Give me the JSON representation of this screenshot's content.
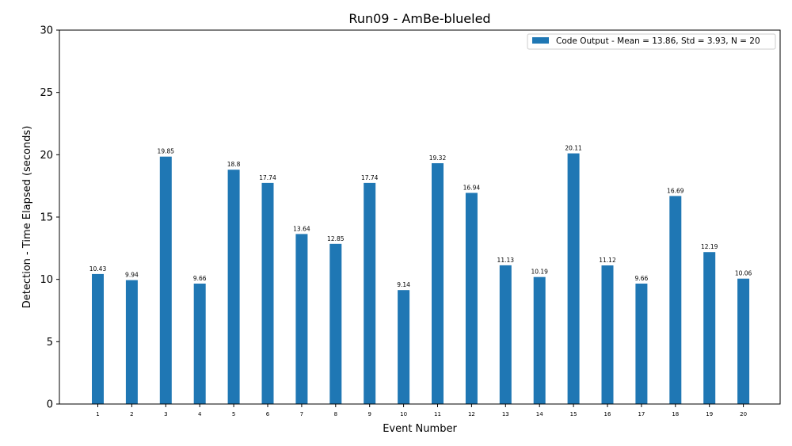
{
  "chart_data": {
    "type": "bar",
    "title": "Run09 - AmBe-blueled",
    "xlabel": "Event Number",
    "ylabel": "Detection - Time Elapsed (seconds)",
    "ylim": [
      0,
      30
    ],
    "yticks": [
      0,
      5,
      10,
      15,
      20,
      25,
      30
    ],
    "grid": false,
    "legend_position": "top-right",
    "categories": [
      "1",
      "2",
      "3",
      "4",
      "5",
      "6",
      "7",
      "8",
      "9",
      "10",
      "11",
      "12",
      "13",
      "14",
      "15",
      "16",
      "17",
      "18",
      "19",
      "20"
    ],
    "series": [
      {
        "name": "Code Output - Mean = 13.86, Std = 3.93, N = 20",
        "color": "#1f77b4",
        "values": [
          10.43,
          9.94,
          19.85,
          9.66,
          18.8,
          17.74,
          13.64,
          12.85,
          17.74,
          9.14,
          19.32,
          16.94,
          11.13,
          10.19,
          20.11,
          11.12,
          9.66,
          16.69,
          12.19,
          10.06
        ],
        "labels": [
          "10.43",
          "9.94",
          "19.85",
          "9.66",
          "18.8",
          "17.74",
          "13.64",
          "12.85",
          "17.74",
          "9.14",
          "19.32",
          "16.94",
          "11.13",
          "10.19",
          "20.11",
          "11.12",
          "9.66",
          "16.69",
          "12.19",
          "10.06"
        ]
      }
    ]
  }
}
